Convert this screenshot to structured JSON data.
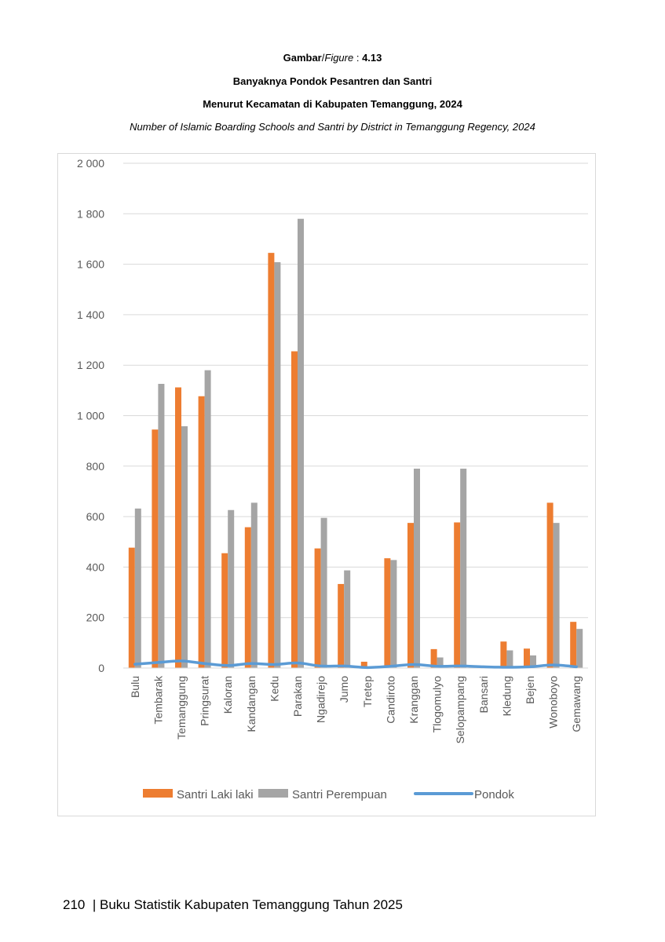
{
  "figure": {
    "label_bold": "Gambar",
    "label_italic": "Figure",
    "separator": " : ",
    "number": "4.13",
    "title_line1": "Banyaknya Pondok Pesantren dan Santri",
    "title_line2": "Menurut Kecamatan di Kabupaten Temanggung, 2024",
    "title_en": "Number of Islamic Boarding Schools and Santri by District in Temanggung Regency, 2024"
  },
  "chart_data": {
    "type": "bar",
    "categories": [
      "Bulu",
      "Tembarak",
      "Temanggung",
      "Pringsurat",
      "Kaloran",
      "Kandangan",
      "Kedu",
      "Parakan",
      "Ngadirejo",
      "Jumo",
      "Tretep",
      "Candiroto",
      "Kranggan",
      "Tlogomulyo",
      "Selopampang",
      "Bansari",
      "Kledung",
      "Bejen",
      "Wonoboyo",
      "Gemawang"
    ],
    "series": [
      {
        "name": "Santri Laki laki",
        "type": "bar",
        "color": "#ed7d31",
        "values": [
          477,
          945,
          1112,
          1077,
          455,
          558,
          1645,
          1255,
          474,
          333,
          25,
          435,
          575,
          75,
          577,
          0,
          105,
          77,
          655,
          183
        ]
      },
      {
        "name": "Santri Perempuan",
        "type": "bar",
        "color": "#a5a5a5",
        "values": [
          632,
          1126,
          958,
          1180,
          626,
          655,
          1608,
          1780,
          595,
          387,
          0,
          428,
          790,
          42,
          790,
          0,
          70,
          50,
          575,
          155
        ]
      },
      {
        "name": "Pondok",
        "type": "line",
        "color": "#5b9bd5",
        "values": [
          15,
          22,
          28,
          18,
          10,
          18,
          14,
          20,
          8,
          8,
          2,
          7,
          14,
          7,
          8,
          5,
          3,
          5,
          12,
          5
        ]
      }
    ],
    "yticks": [
      "0",
      "200",
      "400",
      "600",
      "800",
      "1 000",
      "1 200",
      "1 400",
      "1 600",
      "1 800",
      "2 000"
    ],
    "ylim": [
      0,
      2000
    ],
    "grid": true,
    "legend_position": "bottom"
  },
  "footer": {
    "page_number": "210",
    "divider": "|",
    "book_title": "Buku Statistik Kabupaten Temanggung Tahun 2025"
  }
}
